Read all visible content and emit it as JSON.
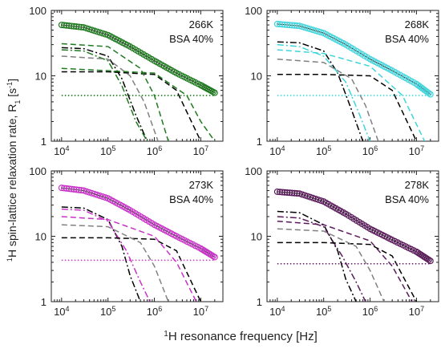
{
  "figure": {
    "ylabel_main": "H spin-lattice relaxation rate, R",
    "ylabel_sup": "1",
    "ylabel_sub": "1",
    "ylabel_unit_open": " [s",
    "ylabel_unit_sup": "-1",
    "ylabel_unit_close": "]",
    "xlabel_sup": "1",
    "xlabel_main": "H resonance frequency [Hz]"
  },
  "chart_data": [
    {
      "type": "line",
      "temperature": "266K",
      "sample": "BSA 40%",
      "color": "#1f7a1f",
      "xscale": "log",
      "yscale": "log",
      "xlim": [
        6000,
        30000000
      ],
      "ylim": [
        1,
        100
      ],
      "xticks": [
        "10^4",
        "10^5",
        "10^6",
        "10^7"
      ],
      "yticks": [
        "1",
        "10",
        "100"
      ],
      "measured": {
        "x": [
          10000,
          30000,
          100000,
          300000,
          1000000,
          3000000,
          10000000,
          20000000
        ],
        "y": [
          60,
          55,
          42,
          28,
          17,
          11,
          7.2,
          5.5
        ]
      },
      "components": [
        {
          "style": "dash-dot",
          "color": "#000000",
          "x": [
            10000,
            30000,
            100000,
            200000,
            400000,
            700000
          ],
          "y": [
            27,
            26,
            20,
            9,
            2.5,
            1
          ]
        },
        {
          "style": "dash-dot",
          "color": "#1f7a1f",
          "x": [
            10000,
            30000,
            100000,
            200000,
            400000,
            700000
          ],
          "y": [
            25,
            24,
            17,
            7,
            2,
            1
          ]
        },
        {
          "style": "dash",
          "color": "#000000",
          "x": [
            10000,
            100000,
            1000000,
            3000000,
            10000000
          ],
          "y": [
            11.5,
            11.5,
            10.5,
            6,
            1
          ]
        },
        {
          "style": "dash",
          "color": "#1f7a1f",
          "x": [
            10000,
            100000,
            500000,
            1000000,
            2000000
          ],
          "y": [
            31,
            28,
            13,
            5,
            1
          ]
        },
        {
          "style": "dash",
          "color": "#808080",
          "x": [
            10000,
            100000,
            300000,
            600000,
            1200000
          ],
          "y": [
            20,
            18,
            10,
            4,
            1
          ]
        },
        {
          "style": "dash",
          "color": "#1f7a1f",
          "x": [
            10000,
            1000000,
            5000000,
            10000000,
            20000000
          ],
          "y": [
            13,
            11,
            5,
            2,
            1
          ]
        },
        {
          "style": "dot",
          "color": "#1f7a1f",
          "x": [
            10000,
            20000000
          ],
          "y": [
            5,
            5
          ]
        }
      ]
    },
    {
      "type": "line",
      "temperature": "268K",
      "sample": "BSA 40%",
      "color": "#40d4dc",
      "xscale": "log",
      "yscale": "log",
      "xlim": [
        6000,
        30000000
      ],
      "ylim": [
        1,
        100
      ],
      "xticks": [
        "10^4",
        "10^5",
        "10^6",
        "10^7"
      ],
      "yticks": [
        "1",
        "10",
        "100"
      ],
      "measured": {
        "x": [
          10000,
          30000,
          100000,
          300000,
          1000000,
          3000000,
          10000000,
          20000000
        ],
        "y": [
          62,
          58,
          45,
          30,
          18,
          12,
          7.5,
          5.2
        ]
      },
      "components": [
        {
          "style": "dash-dot",
          "color": "#000000",
          "x": [
            10000,
            30000,
            100000,
            200000,
            400000,
            700000
          ],
          "y": [
            33,
            32,
            24,
            11,
            3,
            1
          ]
        },
        {
          "style": "dash-dot",
          "color": "#40d4dc",
          "x": [
            10000,
            30000,
            100000,
            300000,
            600000,
            1000000
          ],
          "y": [
            30,
            28,
            20,
            8,
            2.5,
            1
          ]
        },
        {
          "style": "dash",
          "color": "#000000",
          "x": [
            10000,
            100000,
            1000000,
            3000000,
            10000000
          ],
          "y": [
            10.5,
            10.5,
            10,
            6,
            1
          ]
        },
        {
          "style": "dash",
          "color": "#808080",
          "x": [
            10000,
            100000,
            400000,
            800000,
            1500000
          ],
          "y": [
            18,
            16,
            9,
            3.5,
            1
          ]
        },
        {
          "style": "dash",
          "color": "#40d4dc",
          "x": [
            10000,
            100000,
            1000000,
            5000000,
            15000000
          ],
          "y": [
            25,
            22,
            14,
            5,
            1
          ]
        },
        {
          "style": "dot",
          "color": "#40d4dc",
          "x": [
            10000,
            20000000
          ],
          "y": [
            5,
            5
          ]
        }
      ]
    },
    {
      "type": "line",
      "temperature": "273K",
      "sample": "BSA 40%",
      "color": "#c832c8",
      "xscale": "log",
      "yscale": "log",
      "xlim": [
        6000,
        30000000
      ],
      "ylim": [
        1,
        100
      ],
      "xticks": [
        "10^4",
        "10^5",
        "10^6",
        "10^7"
      ],
      "yticks": [
        "1",
        "10",
        "100"
      ],
      "measured": {
        "x": [
          10000,
          30000,
          100000,
          300000,
          1000000,
          3000000,
          10000000,
          20000000
        ],
        "y": [
          55,
          50,
          38,
          25,
          15,
          10,
          6.5,
          4.8
        ]
      },
      "components": [
        {
          "style": "dash-dot",
          "color": "#000000",
          "x": [
            10000,
            30000,
            100000,
            200000,
            300000,
            500000
          ],
          "y": [
            28,
            27,
            18,
            7,
            2.5,
            1
          ]
        },
        {
          "style": "dash-dot",
          "color": "#c832c8",
          "x": [
            10000,
            30000,
            100000,
            250000,
            500000,
            800000
          ],
          "y": [
            26,
            25,
            17,
            6,
            2,
            1
          ]
        },
        {
          "style": "dash",
          "color": "#000000",
          "x": [
            10000,
            100000,
            1000000,
            3000000,
            10000000
          ],
          "y": [
            9.5,
            9.5,
            9,
            6,
            1
          ]
        },
        {
          "style": "dash",
          "color": "#808080",
          "x": [
            10000,
            100000,
            500000,
            1000000,
            2000000
          ],
          "y": [
            15,
            14,
            8,
            3.5,
            1
          ]
        },
        {
          "style": "dash",
          "color": "#c832c8",
          "x": [
            10000,
            100000,
            1000000,
            3000000,
            8000000
          ],
          "y": [
            20,
            18,
            10,
            4,
            1
          ]
        },
        {
          "style": "dot",
          "color": "#c832c8",
          "x": [
            10000,
            20000000
          ],
          "y": [
            4.3,
            4.3
          ]
        }
      ]
    },
    {
      "type": "line",
      "temperature": "278K",
      "sample": "BSA 40%",
      "color": "#5a1a5a",
      "xscale": "log",
      "yscale": "log",
      "xlim": [
        6000,
        30000000
      ],
      "ylim": [
        1,
        100
      ],
      "xticks": [
        "10^4",
        "10^5",
        "10^6",
        "10^7"
      ],
      "yticks": [
        "1",
        "10",
        "100"
      ],
      "measured": {
        "x": [
          10000,
          30000,
          100000,
          300000,
          1000000,
          3000000,
          10000000,
          20000000
        ],
        "y": [
          48,
          45,
          34,
          22,
          13,
          8.8,
          5.8,
          4.2
        ]
      },
      "components": [
        {
          "style": "dash-dot",
          "color": "#000000",
          "x": [
            10000,
            30000,
            100000,
            200000,
            300000,
            500000
          ],
          "y": [
            24,
            23,
            15,
            6,
            2.2,
            1
          ]
        },
        {
          "style": "dash-dot",
          "color": "#5a1a5a",
          "x": [
            10000,
            30000,
            100000,
            250000,
            500000,
            800000
          ],
          "y": [
            20,
            19,
            14,
            5,
            2,
            1
          ]
        },
        {
          "style": "dash",
          "color": "#000000",
          "x": [
            10000,
            100000,
            1000000,
            3000000,
            10000000
          ],
          "y": [
            8,
            8,
            7.5,
            5,
            1
          ]
        },
        {
          "style": "dash",
          "color": "#808080",
          "x": [
            10000,
            100000,
            500000,
            1000000,
            2000000
          ],
          "y": [
            13,
            12,
            7,
            3,
            1
          ]
        },
        {
          "style": "dash",
          "color": "#5a1a5a",
          "x": [
            10000,
            100000,
            1000000,
            3000000,
            8000000
          ],
          "y": [
            17,
            15,
            8.5,
            3.5,
            1
          ]
        },
        {
          "style": "dot",
          "color": "#5a1a5a",
          "x": [
            10000,
            20000000
          ],
          "y": [
            3.8,
            3.8
          ]
        }
      ]
    }
  ]
}
